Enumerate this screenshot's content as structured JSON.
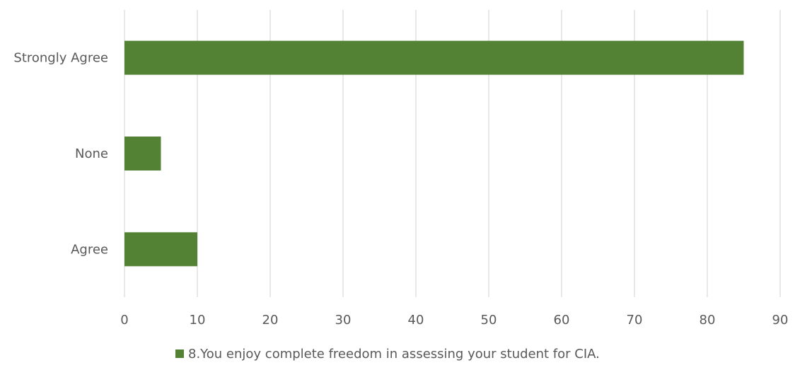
{
  "chart_data": {
    "type": "bar",
    "orientation": "horizontal",
    "categories": [
      "Strongly Agree",
      "None",
      "Agree"
    ],
    "series": [
      {
        "name": "8.You enjoy complete freedom in assessing your student for CIA.",
        "values": [
          85,
          5,
          10
        ],
        "color": "#548235"
      }
    ],
    "xlim": [
      0,
      90
    ],
    "x_ticks": [
      0,
      10,
      20,
      30,
      40,
      50,
      60,
      70,
      80,
      90
    ],
    "grid": "vertical",
    "legend_position": "bottom",
    "title": "",
    "xlabel": "",
    "ylabel": ""
  }
}
